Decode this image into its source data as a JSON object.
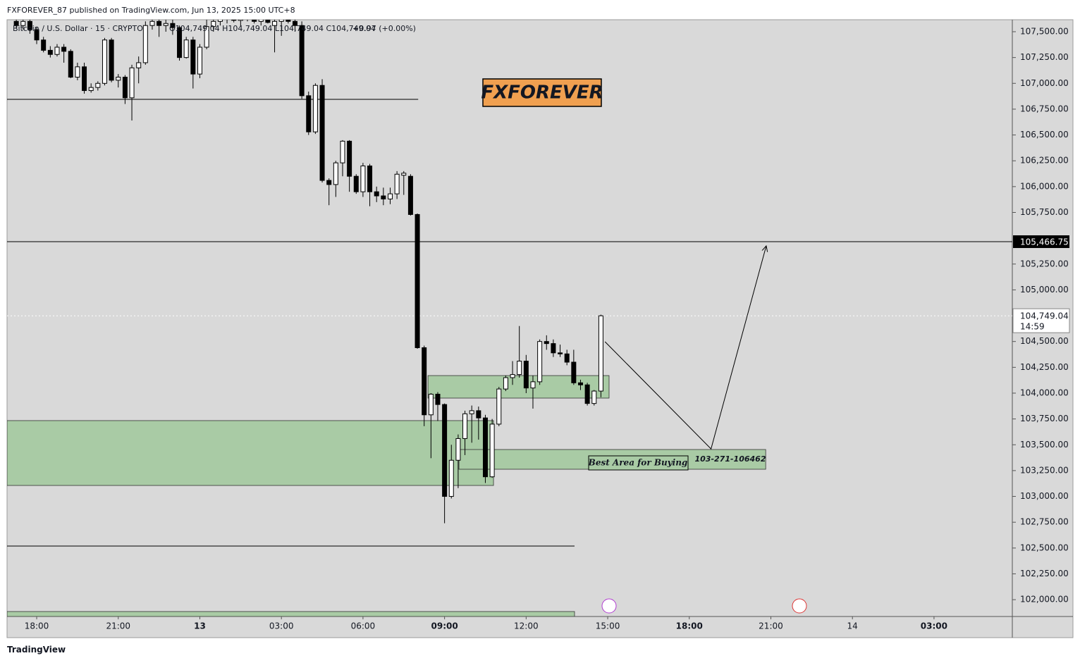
{
  "header": {
    "published": "FXFOREVER_87 published on TradingView.com, Jun 13, 2025 15:00 UTC+8",
    "brand": "TradingView"
  },
  "chart_data": {
    "type": "candlestick",
    "symbol": "Bitcoin / U.S. Dollar · 15 · CRYPTO",
    "ohlc": "O104,749.04 H104,749.04 L104,749.04 C104,749.04",
    "change": "+0.97 (+0.00%)",
    "x": [
      -0.75,
      -0.5,
      -0.25,
      0,
      0.25,
      0.5,
      0.75,
      1,
      1.25,
      1.5,
      1.75,
      2,
      2.25,
      2.5,
      2.75,
      3,
      3.25,
      3.5,
      3.75,
      4,
      4.25,
      4.5,
      4.75,
      5,
      5.25,
      5.5,
      5.75,
      6,
      6.25,
      6.5,
      6.75,
      7,
      7.25,
      7.5,
      7.75,
      8,
      8.25,
      8.5,
      8.75,
      9,
      9.25,
      9.5,
      9.75,
      10,
      10.25,
      10.5,
      10.75,
      11,
      11.25,
      11.5,
      11.75,
      12,
      12.25,
      12.5,
      12.75,
      13,
      13.25,
      13.5,
      13.75,
      14,
      14.25,
      14.5,
      14.75,
      15,
      15.25,
      15.5,
      15.75,
      16,
      16.25,
      16.5,
      16.75,
      17,
      17.25,
      17.5,
      17.75,
      18,
      18.25,
      18.5,
      18.75,
      19,
      19.25,
      19.5,
      19.75,
      20,
      20.25,
      20.5,
      20.75
    ],
    "open": [
      107600,
      107560,
      107600,
      107520,
      107420,
      107320,
      107280,
      107350,
      107310,
      107060,
      107160,
      106930,
      106960,
      107000,
      107420,
      107030,
      107060,
      106860,
      107150,
      107200,
      107560,
      107600,
      107560,
      107580,
      107540,
      107250,
      107420,
      107090,
      107350,
      107550,
      107600,
      107620,
      107640,
      107610,
      107630,
      107650,
      107600,
      107620,
      107560,
      107600,
      107620,
      107600,
      107560,
      106880,
      106530,
      106980,
      106060,
      106020,
      106230,
      106440,
      106100,
      105950,
      106200,
      105950,
      105910,
      105880,
      105930,
      106110,
      106100,
      105730,
      104440,
      103790,
      103990,
      103890,
      103000,
      103350,
      103560,
      103800,
      103830,
      103760,
      103190,
      103700,
      104040,
      104150,
      104180,
      104310,
      104050,
      104110,
      104500,
      104480,
      104390,
      104380,
      104300,
      104100,
      104080,
      103900,
      104020
    ],
    "high": [
      107650,
      107650,
      107640,
      107550,
      107450,
      107360,
      107380,
      107380,
      107330,
      107200,
      107200,
      107000,
      107020,
      107440,
      107440,
      107090,
      107080,
      107180,
      107260,
      107600,
      107650,
      107650,
      107630,
      107640,
      107560,
      107450,
      107450,
      107380,
      107620,
      107650,
      107680,
      107700,
      107700,
      107680,
      107700,
      107700,
      107660,
      107680,
      107650,
      107660,
      107680,
      107660,
      107600,
      106920,
      107000,
      107040,
      106080,
      106250,
      106450,
      106450,
      106120,
      106230,
      106220,
      106000,
      105990,
      105990,
      106150,
      106150,
      106120,
      105740,
      104460,
      104000,
      104010,
      103900,
      103500,
      103600,
      103830,
      103880,
      103870,
      103790,
      103750,
      104060,
      104170,
      104310,
      104650,
      104370,
      104170,
      104520,
      104560,
      104520,
      104470,
      104420,
      104420,
      104130,
      104100,
      104030,
      104760
    ],
    "low": [
      107530,
      107520,
      107480,
      107380,
      107300,
      107250,
      107260,
      107200,
      107050,
      107030,
      106900,
      106910,
      106930,
      106980,
      107010,
      106960,
      106800,
      106640,
      107000,
      107180,
      107520,
      107450,
      107500,
      107470,
      107220,
      107240,
      106950,
      107050,
      107330,
      107500,
      107560,
      107580,
      107590,
      107550,
      107600,
      107580,
      107560,
      107580,
      107300,
      107460,
      107580,
      107500,
      106850,
      106500,
      106510,
      106040,
      105820,
      105900,
      106100,
      105950,
      105930,
      105900,
      105810,
      105850,
      105820,
      105830,
      105880,
      105920,
      105720,
      104430,
      103680,
      103370,
      103730,
      102740,
      102980,
      103080,
      103400,
      103520,
      103550,
      103130,
      103180,
      103680,
      104020,
      104080,
      104150,
      104000,
      103850,
      104080,
      104420,
      104350,
      104350,
      104270,
      104080,
      104030,
      103880,
      103880,
      103960
    ],
    "close": [
      107560,
      107600,
      107520,
      107420,
      107320,
      107280,
      107350,
      107310,
      107060,
      107160,
      106930,
      106960,
      107000,
      107420,
      107030,
      107060,
      106860,
      107150,
      107200,
      107560,
      107600,
      107560,
      107580,
      107540,
      107250,
      107420,
      107090,
      107350,
      107550,
      107600,
      107620,
      107640,
      107610,
      107630,
      107650,
      107600,
      107620,
      107590,
      107600,
      107620,
      107600,
      107560,
      106880,
      106530,
      106980,
      106060,
      106020,
      106230,
      106440,
      106100,
      105950,
      106200,
      105950,
      105910,
      105880,
      105930,
      106120,
      106130,
      105730,
      104440,
      103790,
      103990,
      103890,
      103000,
      103350,
      103560,
      103800,
      103830,
      103760,
      103190,
      103700,
      104040,
      104150,
      104180,
      104310,
      104050,
      104110,
      104500,
      104480,
      104390,
      104380,
      104300,
      104100,
      104080,
      103900,
      104020,
      104749.04
    ],
    "up_color": "#ffffff",
    "down_color": "#000000",
    "xlim": [
      -1.09,
      35.88
    ],
    "xticks": [
      {
        "value": 0,
        "label": "18:00"
      },
      {
        "value": 3,
        "label": "21:00"
      },
      {
        "value": 6,
        "label": "13"
      },
      {
        "value": 9,
        "label": "03:00"
      },
      {
        "value": 12,
        "label": "06:00"
      },
      {
        "value": 15,
        "label": "09:00"
      },
      {
        "value": 18,
        "label": "12:00"
      },
      {
        "value": 21,
        "label": "15:00"
      },
      {
        "value": 24,
        "label": "18:00"
      },
      {
        "value": 27,
        "label": "21:00"
      },
      {
        "value": 30,
        "label": "14"
      },
      {
        "value": 33,
        "label": "03:00"
      }
    ],
    "ylim": [
      101837,
      107616
    ],
    "yticks": [
      {
        "value": 107500,
        "label": "107,500.00"
      },
      {
        "value": 107250,
        "label": "107,250.00"
      },
      {
        "value": 107000,
        "label": "107,000.00"
      },
      {
        "value": 106750,
        "label": "106,750.00"
      },
      {
        "value": 106500,
        "label": "106,500.00"
      },
      {
        "value": 106250,
        "label": "106,250.00"
      },
      {
        "value": 106000,
        "label": "106,000.00"
      },
      {
        "value": 105750,
        "label": "105,750.00"
      },
      {
        "value": 105250,
        "label": "105,250.00"
      },
      {
        "value": 105000,
        "label": "105,000.00"
      },
      {
        "value": 104500,
        "label": "104,500.00"
      },
      {
        "value": 104250,
        "label": "104,250.00"
      },
      {
        "value": 104000,
        "label": "104,000.00"
      },
      {
        "value": 103750,
        "label": "103,750.00"
      },
      {
        "value": 103500,
        "label": "103,500.00"
      },
      {
        "value": 103250,
        "label": "103,250.00"
      },
      {
        "value": 103000,
        "label": "103,000.00"
      },
      {
        "value": 102750,
        "label": "102,750.00"
      },
      {
        "value": 102500,
        "label": "102,500.00"
      },
      {
        "value": 102250,
        "label": "102,250.00"
      },
      {
        "value": 102000,
        "label": "102,000.00"
      }
    ],
    "zone_color": "#a9cba5",
    "zones": [
      {
        "x": [
          -1.09,
          16.8
        ],
        "y": [
          103106,
          103734
        ]
      },
      {
        "x": [
          14.39,
          21.05
        ],
        "y": [
          103952,
          104170
        ]
      },
      {
        "x": [
          15.53,
          26.81
        ],
        "y": [
          103263,
          103454
        ]
      },
      {
        "x": [
          -1.09,
          19.78
        ],
        "y": [
          101837,
          101885
        ]
      }
    ],
    "hlines": [
      {
        "price": 106845,
        "x": [
          -1.09,
          14.03
        ]
      },
      {
        "price": 105466.75,
        "label": "105,466.75",
        "x": [
          -1.09,
          35.88
        ]
      },
      {
        "price": 102519,
        "x": [
          -1.09,
          19.78
        ]
      }
    ],
    "arrow": {
      "x": [
        20.9,
        24.8,
        26.83
      ],
      "y": [
        104498,
        103460,
        105426
      ]
    },
    "last_price": {
      "value": 104749.04,
      "label": "104,749.04",
      "countdown": "14:59"
    },
    "annotations": {
      "logo": "FXFOREVER",
      "buy_area": "Best Area for Buying",
      "range": "103-271-106462"
    }
  }
}
